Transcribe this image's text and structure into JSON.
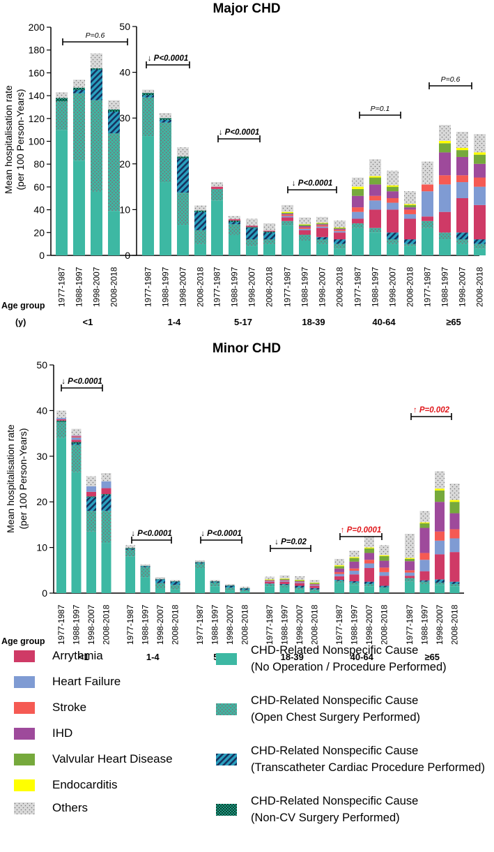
{
  "colors": {
    "arrhythmia": "#cf3a66",
    "heart_failure": "#7f9bd3",
    "stroke": "#f55a53",
    "ihd": "#9e4a9b",
    "valvular": "#76a93c",
    "endocarditis": "#ffff00",
    "others": "#d4d4d4",
    "no_op": "#3db8a3",
    "open_chest": "#5c9a8d",
    "transcath": "#2aa0bf",
    "noncv": "#1f8a72",
    "significant": "#e0181c"
  },
  "labels": {
    "y_axis_line1": "Mean hospitalisation rate",
    "y_axis_line2": "(per 100 Person-Years)",
    "age_group_line1": "Age group",
    "age_group_line2": "(y)"
  },
  "legend": {
    "left": [
      {
        "key": "arrhythmia",
        "label": "Arrythmia"
      },
      {
        "key": "heart_failure",
        "label": "Heart Failure"
      },
      {
        "key": "stroke",
        "label": "Stroke"
      },
      {
        "key": "ihd",
        "label": "IHD"
      },
      {
        "key": "valvular",
        "label": "Valvular Heart Disease"
      },
      {
        "key": "endocarditis",
        "label": "Endocarditis"
      },
      {
        "key": "others",
        "label": "Others"
      }
    ],
    "right": [
      {
        "key": "no_op",
        "line1": "CHD-Related Nonspecific Cause",
        "line2": "(No Operation / Procedure Performed)"
      },
      {
        "key": "open_chest",
        "line1": "CHD-Related Nonspecific Cause",
        "line2": "(Open Chest Surgery Performed)"
      },
      {
        "key": "transcath",
        "line1": "CHD-Related Nonspecific Cause",
        "line2": "(Transcatheter Cardiac Procedure Performed)"
      },
      {
        "key": "noncv",
        "line1": "CHD-Related Nonspecific Cause",
        "line2": "(Non-CV Surgery Performed)"
      }
    ]
  },
  "chart_data": [
    {
      "type": "bar",
      "stacked": true,
      "title": "Major CHD",
      "ylabel": "Mean hospitalisation rate (per 100 Person-Years)",
      "xlabel": "Age group (y)",
      "periods": [
        "1977-1987",
        "1988-1997",
        "1998-2007",
        "2008-2018"
      ],
      "series_order": [
        "no_op",
        "open_chest",
        "transcath",
        "noncv",
        "arrhythmia",
        "heart_failure",
        "stroke",
        "ihd",
        "valvular",
        "endocarditis",
        "others"
      ],
      "panels": [
        {
          "group": "<1",
          "ylim": [
            0,
            200
          ],
          "yticks": [
            0,
            20,
            40,
            60,
            80,
            100,
            120,
            140,
            160,
            180,
            200
          ],
          "p_text": "P=0.6",
          "trend": "none",
          "significant": false,
          "bars": [
            {
              "no_op": 110,
              "open_chest": 25,
              "transcath": 0,
              "noncv": 3,
              "others": 5
            },
            {
              "no_op": 83,
              "open_chest": 59,
              "transcath": 3,
              "noncv": 2,
              "others": 7
            },
            {
              "no_op": 56,
              "open_chest": 80,
              "transcath": 27,
              "noncv": 1,
              "others": 13
            },
            {
              "no_op": 39,
              "open_chest": 68,
              "transcath": 19,
              "noncv": 2,
              "others": 8
            }
          ]
        },
        {
          "group": "1-4",
          "ylim": [
            0,
            50
          ],
          "yticks": [
            0,
            10,
            20,
            30,
            40,
            50
          ],
          "p_text": "P<0.0001",
          "trend": "down",
          "significant": false,
          "bars": [
            {
              "no_op": 26,
              "open_chest": 8.5,
              "transcath": 0.5,
              "noncv": 0.5,
              "others": 0.7
            },
            {
              "no_op": 16,
              "open_chest": 13,
              "transcath": 0.6,
              "noncv": 0.4,
              "others": 1.1
            },
            {
              "no_op": 6.7,
              "open_chest": 7,
              "transcath": 7.5,
              "noncv": 0.4,
              "others": 2
            },
            {
              "no_op": 2.5,
              "open_chest": 3,
              "transcath": 4,
              "noncv": 0.3,
              "others": 1.1
            }
          ]
        },
        {
          "group": "5-17",
          "ylim": [
            0,
            50
          ],
          "yticks": [
            0,
            10,
            20,
            30,
            40,
            50
          ],
          "p_text": "P<0.0001",
          "trend": "down",
          "significant": false,
          "bars": [
            {
              "no_op": 12,
              "open_chest": 2.5,
              "transcath": 0,
              "noncv": 0,
              "arrhythmia": 0.5,
              "others": 1
            },
            {
              "no_op": 4.5,
              "open_chest": 2.3,
              "transcath": 0.5,
              "noncv": 0.3,
              "arrhythmia": 0.3,
              "others": 0.7
            },
            {
              "no_op": 2,
              "open_chest": 1.5,
              "transcath": 2.5,
              "noncv": 0.2,
              "arrhythmia": 0.3,
              "others": 1.5
            },
            {
              "no_op": 2.5,
              "open_chest": 1,
              "transcath": 1.5,
              "noncv": 0.2,
              "arrhythmia": 0.2,
              "others": 1.6
            }
          ]
        },
        {
          "group": "18-39",
          "ylim": [
            0,
            50
          ],
          "yticks": [
            0,
            10,
            20,
            30,
            40,
            50
          ],
          "p_text": "P<0.0001",
          "trend": "down",
          "significant": false,
          "bars": [
            {
              "no_op": 6.5,
              "open_chest": 1,
              "arrhythmia": 0.8,
              "heart_failure": 0.3,
              "stroke": 0.3,
              "ihd": 0.2,
              "valvular": 0.2,
              "endocarditis": 0.2,
              "others": 1.5
            },
            {
              "no_op": 3.2,
              "open_chest": 1.3,
              "arrhythmia": 1,
              "heart_failure": 0.3,
              "stroke": 0.3,
              "ihd": 0.3,
              "valvular": 0.3,
              "endocarditis": 0.1,
              "others": 1.5
            },
            {
              "no_op": 2.5,
              "open_chest": 1,
              "transcath": 0.5,
              "arrhythmia": 2,
              "heart_failure": 0.3,
              "stroke": 0.3,
              "ihd": 0.2,
              "valvular": 0.2,
              "endocarditis": 0.1,
              "others": 1.3
            },
            {
              "no_op": 1.5,
              "open_chest": 1,
              "transcath": 1,
              "arrhythmia": 1.5,
              "heart_failure": 0.3,
              "stroke": 0.3,
              "ihd": 0.2,
              "valvular": 0.2,
              "endocarditis": 0.1,
              "others": 1.5
            }
          ]
        },
        {
          "group": "40-64",
          "ylim": [
            0,
            50
          ],
          "yticks": [
            0,
            10,
            20,
            30,
            40,
            50
          ],
          "p_text": "P=0.1",
          "trend": "none",
          "significant": false,
          "bars": [
            {
              "no_op": 6,
              "open_chest": 1,
              "arrhythmia": 1,
              "heart_failure": 1.5,
              "stroke": 1,
              "ihd": 2.5,
              "valvular": 1.5,
              "endocarditis": 0.5,
              "others": 2
            },
            {
              "no_op": 5,
              "open_chest": 1,
              "arrhythmia": 4,
              "heart_failure": 2,
              "stroke": 1,
              "ihd": 2.5,
              "valvular": 1.5,
              "endocarditis": 0.3,
              "others": 3.7
            },
            {
              "no_op": 2.5,
              "open_chest": 1,
              "transcath": 1.5,
              "arrhythmia": 5,
              "heart_failure": 1.5,
              "stroke": 1,
              "ihd": 1.5,
              "valvular": 1,
              "endocarditis": 0.3,
              "others": 3.2
            },
            {
              "no_op": 2,
              "open_chest": 0.5,
              "transcath": 1,
              "arrhythmia": 4.5,
              "heart_failure": 1,
              "stroke": 1,
              "ihd": 0.5,
              "valvular": 0.5,
              "endocarditis": 0.2,
              "others": 2.8
            }
          ]
        },
        {
          "group": "≥65",
          "ylim": [
            0,
            50
          ],
          "yticks": [
            0,
            10,
            20,
            30,
            40,
            50
          ],
          "p_text": "P=0.6",
          "trend": "none",
          "significant": false,
          "bars": [
            {
              "no_op": 6,
              "open_chest": 1.5,
              "arrhythmia": 1,
              "heart_failure": 5.5,
              "stroke": 1.5,
              "ihd": 0,
              "valvular": 0,
              "endocarditis": 0,
              "others": 5
            },
            {
              "no_op": 3.5,
              "open_chest": 1.5,
              "arrhythmia": 4.5,
              "heart_failure": 6,
              "stroke": 2,
              "ihd": 5,
              "valvular": 2,
              "endocarditis": 0.5,
              "others": 3.5
            },
            {
              "no_op": 2.5,
              "open_chest": 1,
              "transcath": 1.5,
              "arrhythmia": 7.5,
              "heart_failure": 3.5,
              "stroke": 1.5,
              "ihd": 4,
              "valvular": 1.5,
              "endocarditis": 0.5,
              "others": 3.5
            },
            {
              "no_op": 1.5,
              "open_chest": 1,
              "transcath": 1,
              "arrhythmia": 7.5,
              "heart_failure": 4,
              "stroke": 2,
              "ihd": 3,
              "valvular": 2,
              "endocarditis": 0.5,
              "others": 4
            }
          ]
        }
      ]
    },
    {
      "type": "bar",
      "stacked": true,
      "title": "Minor CHD",
      "ylabel": "Mean hospitalisation rate (per 100 Person-Years)",
      "xlabel": "Age group (y)",
      "periods": [
        "1977-1987",
        "1988-1997",
        "1998-2007",
        "2008-2018"
      ],
      "series_order": [
        "no_op",
        "open_chest",
        "transcath",
        "noncv",
        "arrhythmia",
        "heart_failure",
        "stroke",
        "ihd",
        "valvular",
        "endocarditis",
        "others"
      ],
      "ylim": [
        0,
        50
      ],
      "yticks": [
        0,
        10,
        20,
        30,
        40,
        50
      ],
      "panels": [
        {
          "group": "<1",
          "p_text": "P<0.0001",
          "trend": "down",
          "significant": false,
          "bars": [
            {
              "no_op": 34,
              "open_chest": 3.5,
              "transcath": 0,
              "noncv": 0.3,
              "arrhythmia": 0.3,
              "heart_failure": 0.3,
              "others": 1.6
            },
            {
              "no_op": 26.5,
              "open_chest": 6,
              "transcath": 0.3,
              "noncv": 0.3,
              "arrhythmia": 0.5,
              "heart_failure": 0.5,
              "stroke": 0.2,
              "ihd": 0.2,
              "others": 1.5
            },
            {
              "no_op": 13.5,
              "open_chest": 4.5,
              "transcath": 3,
              "noncv": 0.2,
              "arrhythmia": 1,
              "heart_failure": 1.2,
              "others": 2.2
            },
            {
              "no_op": 11,
              "open_chest": 7,
              "transcath": 3.5,
              "noncv": 0.2,
              "arrhythmia": 1.3,
              "heart_failure": 1.5,
              "others": 1.8
            }
          ]
        },
        {
          "group": "1-4",
          "p_text": "P<0.0001",
          "trend": "down",
          "significant": false,
          "bars": [
            {
              "no_op": 8,
              "open_chest": 1.5,
              "transcath": 0.2,
              "noncv": 0.2,
              "others": 0.6
            },
            {
              "no_op": 3.5,
              "open_chest": 2.2,
              "transcath": 0.2,
              "noncv": 0.1,
              "others": 0.3
            },
            {
              "no_op": 1,
              "open_chest": 1.2,
              "transcath": 0.8,
              "noncv": 0.1,
              "others": 0.4
            },
            {
              "no_op": 0.8,
              "open_chest": 1,
              "transcath": 0.7,
              "noncv": 0.1,
              "others": 0.3
            }
          ]
        },
        {
          "group": "5-17",
          "p_text": "P<0.0001",
          "trend": "down",
          "significant": false,
          "bars": [
            {
              "no_op": 5.5,
              "open_chest": 1,
              "transcath": 0.2,
              "noncv": 0.1,
              "others": 0.4
            },
            {
              "no_op": 1.5,
              "open_chest": 0.8,
              "transcath": 0.2,
              "noncv": 0.1,
              "others": 0.3
            },
            {
              "no_op": 0.6,
              "open_chest": 0.6,
              "transcath": 0.4,
              "noncv": 0.1,
              "others": 0.3
            },
            {
              "no_op": 0.4,
              "open_chest": 0.3,
              "transcath": 0.3,
              "noncv": 0.1,
              "others": 0.3
            }
          ]
        },
        {
          "group": "18-39",
          "p_text": "P=0.02",
          "trend": "down",
          "significant": false,
          "bars": [
            {
              "no_op": 1.5,
              "open_chest": 0.5,
              "transcath": 0.1,
              "arrhythmia": 0.4,
              "heart_failure": 0.1,
              "stroke": 0.1,
              "ihd": 0.1,
              "valvular": 0.1,
              "endocarditis": 0.1,
              "others": 0.6
            },
            {
              "no_op": 1.3,
              "open_chest": 0.5,
              "transcath": 0.2,
              "arrhythmia": 0.5,
              "heart_failure": 0.2,
              "stroke": 0.1,
              "ihd": 0.1,
              "valvular": 0.2,
              "endocarditis": 0.1,
              "others": 0.7
            },
            {
              "no_op": 0.8,
              "open_chest": 0.4,
              "transcath": 0.4,
              "arrhythmia": 0.6,
              "heart_failure": 0.2,
              "stroke": 0.1,
              "ihd": 0.1,
              "valvular": 0.2,
              "endocarditis": 0.1,
              "others": 0.8
            },
            {
              "no_op": 0.5,
              "open_chest": 0.3,
              "transcath": 0.3,
              "arrhythmia": 0.5,
              "heart_failure": 0.2,
              "stroke": 0.1,
              "ihd": 0.1,
              "valvular": 0.2,
              "endocarditis": 0.1,
              "others": 0.6
            }
          ]
        },
        {
          "group": "40-64",
          "p_text": "P=0.0001",
          "trend": "up",
          "significant": true,
          "bars": [
            {
              "no_op": 2.2,
              "open_chest": 0.5,
              "transcath": 0.2,
              "arrhythmia": 0.8,
              "heart_failure": 0.5,
              "stroke": 0.4,
              "ihd": 0.8,
              "valvular": 0.5,
              "endocarditis": 0.2,
              "others": 1.4
            },
            {
              "no_op": 1.8,
              "open_chest": 0.5,
              "transcath": 0.3,
              "arrhythmia": 1.5,
              "heart_failure": 0.8,
              "stroke": 0.5,
              "ihd": 1.5,
              "valvular": 0.8,
              "endocarditis": 0.2,
              "others": 1.4
            },
            {
              "no_op": 1.5,
              "open_chest": 0.5,
              "transcath": 0.5,
              "arrhythmia": 3,
              "heart_failure": 1,
              "stroke": 0.8,
              "ihd": 1.5,
              "valvular": 1,
              "endocarditis": 0.2,
              "others": 2.4
            },
            {
              "no_op": 1,
              "open_chest": 0.3,
              "transcath": 0.3,
              "arrhythmia": 2.2,
              "heart_failure": 0.8,
              "stroke": 1,
              "ihd": 1.5,
              "valvular": 1,
              "endocarditis": 0.2,
              "others": 2.2
            }
          ]
        },
        {
          "group": "≥65",
          "p_text": "P=0.002",
          "trend": "up",
          "significant": true,
          "bars": [
            {
              "no_op": 2.5,
              "open_chest": 0.8,
              "arrhythmia": 0.5,
              "heart_failure": 0.7,
              "stroke": 0.5,
              "ihd": 2,
              "valvular": 0.5,
              "endocarditis": 0.2,
              "others": 5.3
            },
            {
              "no_op": 2,
              "open_chest": 0.5,
              "transcath": 0.3,
              "arrhythmia": 2,
              "heart_failure": 2.5,
              "stroke": 1.5,
              "ihd": 5.5,
              "valvular": 1,
              "endocarditis": 0.2,
              "others": 2.5
            },
            {
              "no_op": 1.8,
              "open_chest": 0.5,
              "transcath": 0.7,
              "arrhythmia": 5.5,
              "heart_failure": 3,
              "stroke": 2,
              "ihd": 6.5,
              "valvular": 2.5,
              "endocarditis": 0.4,
              "others": 3.8
            },
            {
              "no_op": 1.5,
              "open_chest": 0.5,
              "transcath": 0.5,
              "arrhythmia": 6.5,
              "heart_failure": 3,
              "stroke": 2,
              "ihd": 3.5,
              "valvular": 2.5,
              "endocarditis": 0.4,
              "others": 3.6
            }
          ]
        }
      ]
    }
  ]
}
